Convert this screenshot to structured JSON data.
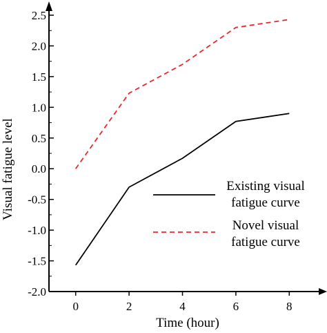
{
  "chart_data": {
    "type": "line",
    "xlabel": "Time (hour)",
    "ylabel": "Visual fatigue level",
    "xlim": [
      -1,
      9
    ],
    "ylim": [
      -2.0,
      2.5
    ],
    "x_ticks": [
      0,
      2,
      4,
      6,
      8
    ],
    "x_tick_labels": [
      "0",
      "2",
      "4",
      "6",
      "8"
    ],
    "y_ticks": [
      -2.0,
      -1.5,
      -1.0,
      -0.5,
      0.0,
      0.5,
      1.0,
      1.5,
      2.0,
      2.5
    ],
    "y_tick_labels": [
      "-2.0",
      "-1.5",
      "-1.0",
      "-0.5",
      "0.0",
      "0.5",
      "1.0",
      "1.5",
      "2.0",
      "2.5"
    ],
    "grid": false,
    "legend_position": "center-right",
    "series": [
      {
        "name_lines": [
          "Existing visual",
          "fatigue curve"
        ],
        "x": [
          0,
          2,
          4,
          6,
          8
        ],
        "values": [
          -1.57,
          -0.3,
          0.17,
          0.77,
          0.9
        ],
        "color": "#000000",
        "style": "solid"
      },
      {
        "name_lines": [
          "Novel visual",
          "fatigue curve"
        ],
        "x": [
          0,
          2,
          4,
          6,
          8
        ],
        "values": [
          0.0,
          1.23,
          1.7,
          2.3,
          2.43
        ],
        "color": "#e8262d",
        "style": "dashed"
      }
    ]
  }
}
